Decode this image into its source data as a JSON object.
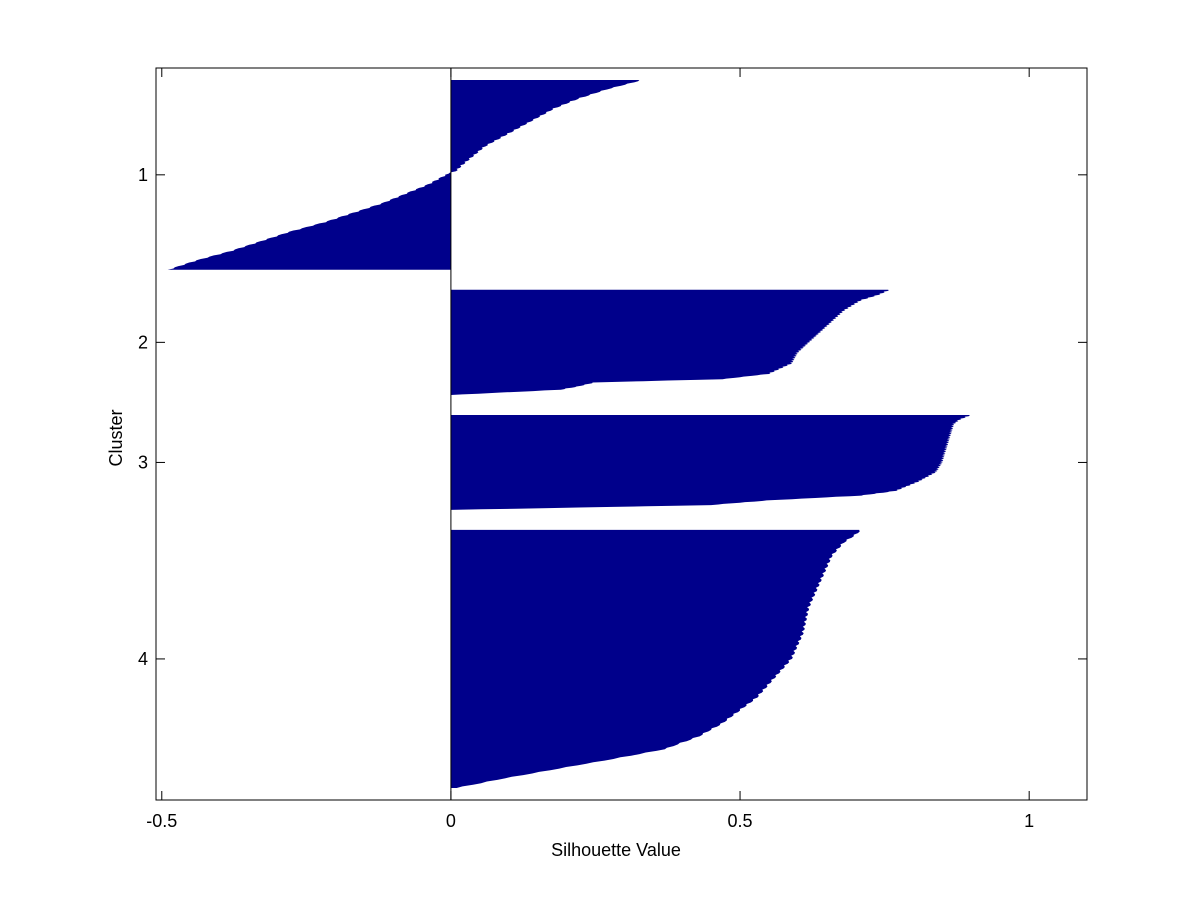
{
  "chart_data": {
    "type": "bar",
    "orientation": "horizontal",
    "title": "",
    "xlabel": "Silhouette Value",
    "ylabel": "Cluster",
    "xlim": [
      -0.51,
      1.1
    ],
    "xticks": [
      -0.5,
      0,
      0.5,
      1
    ],
    "xtick_labels": [
      "-0.5",
      "0",
      "0.5",
      "1"
    ],
    "grid": false,
    "legend": "none",
    "bar_color": "#00008b",
    "clusters": [
      {
        "label": "1",
        "size": 180,
        "profile": [
          [
            0,
            0.33
          ],
          [
            0.01,
            0.32
          ],
          [
            0.05,
            0.27
          ],
          [
            0.1,
            0.22
          ],
          [
            0.15,
            0.18
          ],
          [
            0.2,
            0.15
          ],
          [
            0.25,
            0.12
          ],
          [
            0.3,
            0.09
          ],
          [
            0.35,
            0.06
          ],
          [
            0.4,
            0.04
          ],
          [
            0.45,
            0.02
          ],
          [
            0.48,
            0.01
          ],
          [
            0.5,
            -0.01
          ],
          [
            0.55,
            -0.04
          ],
          [
            0.6,
            -0.08
          ],
          [
            0.65,
            -0.12
          ],
          [
            0.7,
            -0.17
          ],
          [
            0.75,
            -0.22
          ],
          [
            0.8,
            -0.28
          ],
          [
            0.85,
            -0.33
          ],
          [
            0.9,
            -0.38
          ],
          [
            0.95,
            -0.44
          ],
          [
            1,
            -0.49
          ]
        ]
      },
      {
        "label": "2",
        "size": 100,
        "profile": [
          [
            0,
            0.76
          ],
          [
            0.05,
            0.74
          ],
          [
            0.1,
            0.71
          ],
          [
            0.2,
            0.68
          ],
          [
            0.3,
            0.66
          ],
          [
            0.4,
            0.64
          ],
          [
            0.5,
            0.62
          ],
          [
            0.6,
            0.6
          ],
          [
            0.7,
            0.59
          ],
          [
            0.75,
            0.57
          ],
          [
            0.8,
            0.55
          ],
          [
            0.85,
            0.47
          ],
          [
            0.88,
            0.25
          ],
          [
            0.92,
            0.22
          ],
          [
            0.95,
            0.19
          ],
          [
            1,
            0.0
          ]
        ]
      },
      {
        "label": "3",
        "size": 90,
        "profile": [
          [
            0,
            0.9
          ],
          [
            0.05,
            0.88
          ],
          [
            0.1,
            0.87
          ],
          [
            0.3,
            0.86
          ],
          [
            0.5,
            0.85
          ],
          [
            0.6,
            0.84
          ],
          [
            0.7,
            0.81
          ],
          [
            0.75,
            0.79
          ],
          [
            0.8,
            0.77
          ],
          [
            0.85,
            0.71
          ],
          [
            0.9,
            0.55
          ],
          [
            0.95,
            0.45
          ],
          [
            1,
            0.0
          ]
        ]
      },
      {
        "label": "4",
        "size": 245,
        "profile": [
          [
            0,
            0.71
          ],
          [
            0.02,
            0.7
          ],
          [
            0.05,
            0.68
          ],
          [
            0.1,
            0.66
          ],
          [
            0.2,
            0.64
          ],
          [
            0.3,
            0.62
          ],
          [
            0.4,
            0.61
          ],
          [
            0.5,
            0.59
          ],
          [
            0.55,
            0.57
          ],
          [
            0.6,
            0.55
          ],
          [
            0.65,
            0.53
          ],
          [
            0.7,
            0.5
          ],
          [
            0.75,
            0.47
          ],
          [
            0.8,
            0.43
          ],
          [
            0.85,
            0.37
          ],
          [
            0.88,
            0.3
          ],
          [
            0.92,
            0.2
          ],
          [
            0.96,
            0.1
          ],
          [
            1,
            0.01
          ]
        ]
      }
    ]
  }
}
